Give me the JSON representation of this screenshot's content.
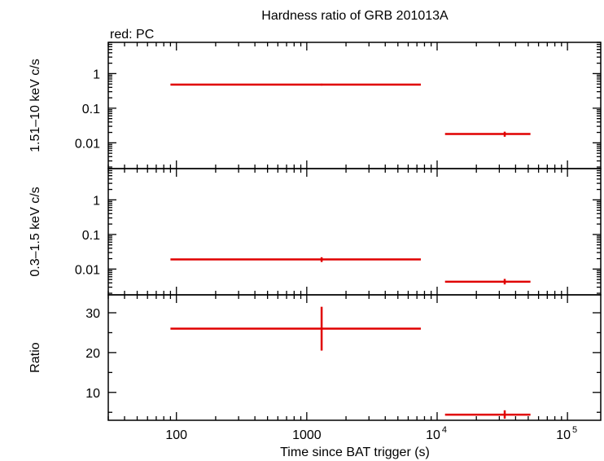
{
  "title": "Hardness ratio of GRB 201013A",
  "legend": "red: PC",
  "colors": {
    "data": "#e00000",
    "axis": "#000000"
  },
  "chart_data": {
    "type": "scatter",
    "x_scale": "log",
    "xlim": [
      30,
      180000
    ],
    "xlabel": "Time since BAT trigger (s)",
    "x_tick_labels": [
      {
        "value": 100,
        "base": "100",
        "exp": ""
      },
      {
        "value": 1000,
        "base": "1000",
        "exp": ""
      },
      {
        "value": 10000,
        "base": "10",
        "exp": "4"
      },
      {
        "value": 100000,
        "base": "10",
        "exp": "5"
      }
    ],
    "panels": [
      {
        "name": "hard",
        "ylabel": "1.51–10 keV c/s",
        "y_scale": "log",
        "ylim": [
          0.0018,
          8
        ],
        "y_tick_labels": [
          {
            "value": 1,
            "label": "1"
          },
          {
            "value": 0.1,
            "label": "0.1"
          },
          {
            "value": 0.01,
            "label": "0.01"
          }
        ],
        "series": [
          {
            "name": "PC",
            "points": [
              {
                "x": 1300,
                "x_lo": 90,
                "x_hi": 7500,
                "y": 0.48,
                "y_lo": 0.45,
                "y_hi": 0.51
              },
              {
                "x": 33000,
                "x_lo": 11500,
                "x_hi": 52000,
                "y": 0.018,
                "y_lo": 0.015,
                "y_hi": 0.021
              }
            ]
          }
        ]
      },
      {
        "name": "soft",
        "ylabel": "0.3–1.5 keV c/s",
        "y_scale": "log",
        "ylim": [
          0.0018,
          8
        ],
        "y_tick_labels": [
          {
            "value": 1,
            "label": "1"
          },
          {
            "value": 0.1,
            "label": "0.1"
          },
          {
            "value": 0.01,
            "label": "0.01"
          }
        ],
        "series": [
          {
            "name": "PC",
            "points": [
              {
                "x": 1300,
                "x_lo": 90,
                "x_hi": 7500,
                "y": 0.019,
                "y_lo": 0.016,
                "y_hi": 0.022
              },
              {
                "x": 33000,
                "x_lo": 11500,
                "x_hi": 52000,
                "y": 0.0043,
                "y_lo": 0.0036,
                "y_hi": 0.0052
              }
            ]
          }
        ]
      },
      {
        "name": "ratio",
        "ylabel": "Ratio",
        "y_scale": "linear",
        "ylim": [
          3,
          34.5
        ],
        "y_tick_labels": [
          {
            "value": 10,
            "label": "10"
          },
          {
            "value": 20,
            "label": "20"
          },
          {
            "value": 30,
            "label": "30"
          }
        ],
        "series": [
          {
            "name": "PC",
            "points": [
              {
                "x": 1300,
                "x_lo": 90,
                "x_hi": 7500,
                "y": 26,
                "y_lo": 20.5,
                "y_hi": 31.5
              },
              {
                "x": 33000,
                "x_lo": 11500,
                "x_hi": 52000,
                "y": 4.4,
                "y_lo": 3.4,
                "y_hi": 5.5
              }
            ]
          }
        ]
      }
    ]
  }
}
